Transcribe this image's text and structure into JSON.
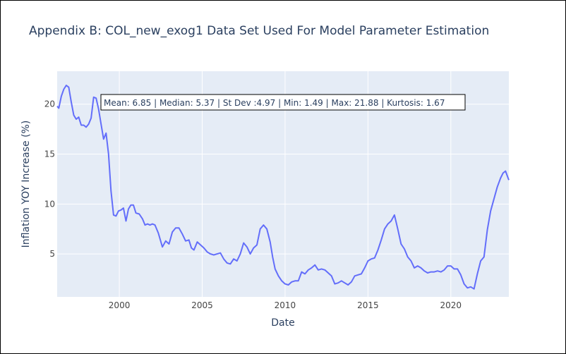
{
  "chart_data": {
    "type": "line",
    "title": "Appendix B: COL_new_exog1 Data Set Used For Model Parameter Estimation",
    "xlabel": "Date",
    "ylabel": "Inflation YOY Increase (%)",
    "xlim": [
      1996.25,
      2023.5
    ],
    "ylim": [
      0.7,
      23.3
    ],
    "x_ticks": [
      2000,
      2005,
      2010,
      2015,
      2020
    ],
    "y_ticks": [
      5,
      10,
      15,
      20
    ],
    "grid": true,
    "legend": false,
    "annotation": "Mean: 6.85 | Median: 5.37 | St Dev :4.97 | Min: 1.49 | Max: 21.88 | Kurtosis: 1.67",
    "colors": {
      "line": "#636efa",
      "plot_bg": "#e5ecf6",
      "grid": "#ffffff",
      "text": "#2a3f5f"
    },
    "series": [
      {
        "x": [
          1996.25,
          1996.35,
          1996.5,
          1996.65,
          1996.8,
          1996.95,
          1997.1,
          1997.25,
          1997.4,
          1997.55,
          1997.7,
          1997.85,
          1998.0,
          1998.15,
          1998.3,
          1998.45,
          1998.6,
          1998.75,
          1998.9,
          1999.05,
          1999.2,
          1999.35,
          1999.5,
          1999.65,
          1999.8,
          1999.95,
          2000.1,
          2000.25,
          2000.4,
          2000.55,
          2000.7,
          2000.85,
          2001.0,
          2001.2,
          2001.4,
          2001.55,
          2001.7,
          2001.85,
          2002.0,
          2002.15,
          2002.35,
          2002.6,
          2002.8,
          2003.0,
          2003.2,
          2003.4,
          2003.6,
          2003.8,
          2004.0,
          2004.2,
          2004.35,
          2004.5,
          2004.7,
          2004.9,
          2005.1,
          2005.3,
          2005.5,
          2005.7,
          2005.9,
          2006.1,
          2006.3,
          2006.5,
          2006.7,
          2006.9,
          2007.1,
          2007.3,
          2007.5,
          2007.7,
          2007.9,
          2008.1,
          2008.3,
          2008.5,
          2008.7,
          2008.9,
          2009.1,
          2009.25,
          2009.4,
          2009.6,
          2009.8,
          2010.0,
          2010.2,
          2010.4,
          2010.6,
          2010.8,
          2011.0,
          2011.2,
          2011.4,
          2011.6,
          2011.8,
          2012.0,
          2012.2,
          2012.4,
          2012.6,
          2012.8,
          2013.0,
          2013.2,
          2013.4,
          2013.6,
          2013.8,
          2014.0,
          2014.2,
          2014.4,
          2014.6,
          2014.8,
          2015.0,
          2015.2,
          2015.4,
          2015.6,
          2015.8,
          2016.0,
          2016.2,
          2016.4,
          2016.6,
          2016.8,
          2017.0,
          2017.2,
          2017.4,
          2017.6,
          2017.8,
          2018.0,
          2018.2,
          2018.4,
          2018.6,
          2018.8,
          2019.0,
          2019.2,
          2019.4,
          2019.6,
          2019.8,
          2020.0,
          2020.2,
          2020.4,
          2020.6,
          2020.8,
          2021.0,
          2021.2,
          2021.4,
          2021.6,
          2021.8,
          2022.0,
          2022.2,
          2022.4,
          2022.6,
          2022.8,
          2023.0,
          2023.15,
          2023.3,
          2023.5
        ],
        "y": [
          19.8,
          19.6,
          20.8,
          21.5,
          21.88,
          21.7,
          20.2,
          18.9,
          18.5,
          18.7,
          17.9,
          17.9,
          17.7,
          18.0,
          18.6,
          20.7,
          20.6,
          19.5,
          18.0,
          16.5,
          17.1,
          15.0,
          11.3,
          8.9,
          8.8,
          9.3,
          9.4,
          9.6,
          8.3,
          9.5,
          9.9,
          9.9,
          9.1,
          9.0,
          8.5,
          7.9,
          8.0,
          7.9,
          8.0,
          7.9,
          7.1,
          5.7,
          6.3,
          6.0,
          7.2,
          7.6,
          7.6,
          7.0,
          6.3,
          6.4,
          5.6,
          5.4,
          6.2,
          5.9,
          5.6,
          5.2,
          5.0,
          4.9,
          5.0,
          5.1,
          4.5,
          4.1,
          4.0,
          4.5,
          4.3,
          5.0,
          6.1,
          5.7,
          5.0,
          5.6,
          5.9,
          7.5,
          7.9,
          7.5,
          6.2,
          4.7,
          3.5,
          2.8,
          2.3,
          2.0,
          1.9,
          2.2,
          2.3,
          2.3,
          3.2,
          3.0,
          3.4,
          3.6,
          3.9,
          3.4,
          3.5,
          3.4,
          3.1,
          2.8,
          2.0,
          2.1,
          2.3,
          2.1,
          1.9,
          2.2,
          2.8,
          2.9,
          3.0,
          3.6,
          4.3,
          4.5,
          4.6,
          5.4,
          6.4,
          7.5,
          8.0,
          8.3,
          8.9,
          7.5,
          6.0,
          5.5,
          4.7,
          4.3,
          3.6,
          3.8,
          3.6,
          3.3,
          3.1,
          3.2,
          3.2,
          3.3,
          3.2,
          3.4,
          3.8,
          3.8,
          3.5,
          3.5,
          2.9,
          2.0,
          1.6,
          1.7,
          1.5,
          3.0,
          4.3,
          4.7,
          7.4,
          9.3,
          10.5,
          11.7,
          12.6,
          13.1,
          13.3,
          12.4
        ]
      }
    ]
  }
}
